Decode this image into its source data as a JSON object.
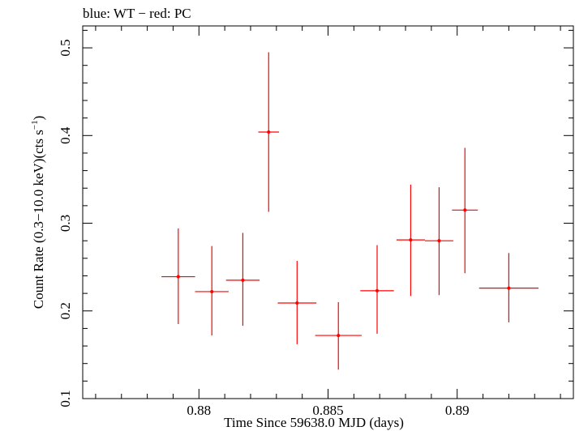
{
  "chart_data": {
    "type": "scatter",
    "title": "blue: WT − red: PC",
    "xlabel": "Time Since 59638.0 MJD (days)",
    "ylabel_main": "Count Rate (0.3−10.0 keV)(cts s",
    "ylabel_sup": "−1",
    "ylabel_close": ")",
    "xlim": [
      0.8755,
      0.8945
    ],
    "ylim": [
      0.1,
      0.525
    ],
    "x_ticks": [
      0.88,
      0.885,
      0.89
    ],
    "x_tick_labels": [
      "0.88",
      "0.885",
      "0.89"
    ],
    "y_ticks": [
      0.1,
      0.2,
      0.3,
      0.4,
      0.5
    ],
    "y_tick_labels": [
      "0.1",
      "0.2",
      "0.3",
      "0.4",
      "0.5"
    ],
    "grid": false,
    "legend": "none",
    "series": [
      {
        "name": "PC",
        "color": "#ff0000",
        "points": [
          {
            "x": 0.8792,
            "y": 0.239,
            "xerr": 0.00065,
            "ylo": 0.185,
            "yhi": 0.294
          },
          {
            "x": 0.8805,
            "y": 0.222,
            "xerr": 0.00065,
            "ylo": 0.172,
            "yhi": 0.274
          },
          {
            "x": 0.8817,
            "y": 0.235,
            "xerr": 0.00065,
            "ylo": 0.183,
            "yhi": 0.289
          },
          {
            "x": 0.8827,
            "y": 0.404,
            "xerr": 0.0004,
            "ylo": 0.313,
            "yhi": 0.495
          },
          {
            "x": 0.8838,
            "y": 0.209,
            "xerr": 0.00075,
            "ylo": 0.162,
            "yhi": 0.257
          },
          {
            "x": 0.8854,
            "y": 0.172,
            "xerr": 0.0009,
            "ylo": 0.133,
            "yhi": 0.21
          },
          {
            "x": 0.8869,
            "y": 0.223,
            "xerr": 0.00065,
            "ylo": 0.174,
            "yhi": 0.275
          },
          {
            "x": 0.8882,
            "y": 0.281,
            "xerr": 0.00055,
            "ylo": 0.217,
            "yhi": 0.344
          },
          {
            "x": 0.8893,
            "y": 0.28,
            "xerr": 0.00055,
            "ylo": 0.218,
            "yhi": 0.341
          },
          {
            "x": 0.8903,
            "y": 0.315,
            "xerr": 0.0005,
            "ylo": 0.243,
            "yhi": 0.386
          },
          {
            "x": 0.892,
            "y": 0.226,
            "xerr": 0.00115,
            "ylo": 0.187,
            "yhi": 0.266
          }
        ]
      }
    ]
  }
}
